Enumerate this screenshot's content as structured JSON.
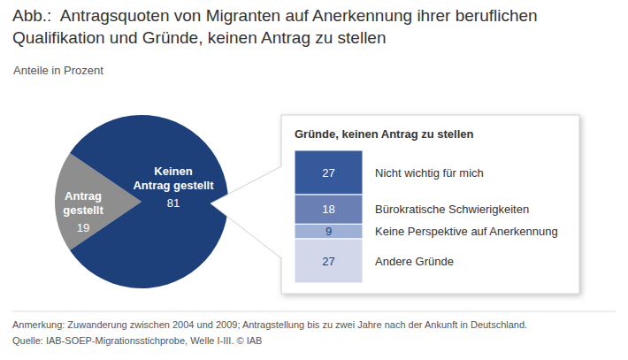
{
  "chart_data": [
    {
      "type": "pie",
      "title": "Abb.:  Antragsquoten von Migranten auf Anerkennung ihrer beruflichen Qualifikation und Gründe, keinen Antrag zu stellen",
      "subtitle": "Anteile in Prozent",
      "note": "Anmerkung: Zuwanderung zwischen 2004 und 2009; Antragstellung bis zu zwei Jahre nach der Ankunft in Deutschland.",
      "source": "Quelle: IAB-SOEP-Migrationsstichprobe, Welle I-III. © IAB",
      "categories": [
        "Antrag gestellt",
        "Keinen Antrag gestellt"
      ],
      "values": [
        19,
        81
      ],
      "colors": [
        "#8e8e8e",
        "#1d3f7a"
      ],
      "data_labels": true
    },
    {
      "type": "bar",
      "title": "Gründe, keinen Antrag zu stellen",
      "categories": [
        "Nicht wichtig für mich",
        "Bürokratische Schwierigkeiten",
        "Keine Perspektive auf Anerkennung",
        "Andere Gründe"
      ],
      "values": [
        27,
        18,
        9,
        27
      ],
      "colors": [
        "#35599a",
        "#6a80b5",
        "#9fb0d6",
        "#d2d8ea"
      ],
      "stacked": true,
      "data_labels": true,
      "tick_labels": false
    }
  ]
}
